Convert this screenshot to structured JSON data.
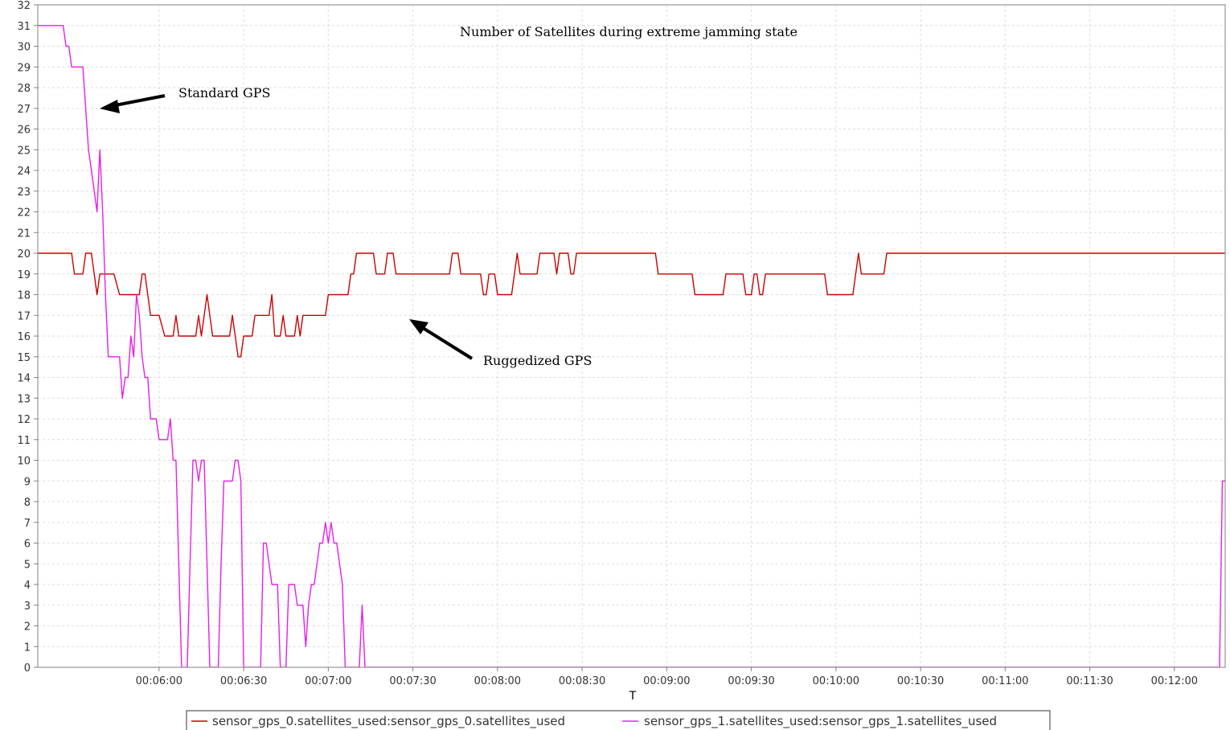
{
  "chart_data": {
    "type": "line",
    "title": "Number of Satellites during extreme jamming state",
    "xlabel": "T",
    "ylabel": "",
    "xlim": [
      "00:05:17",
      "00:12:18"
    ],
    "ylim": [
      0,
      32
    ],
    "grid": true,
    "legend": "bottom-center",
    "x_ticks": [
      "00:06:00",
      "00:06:30",
      "00:07:00",
      "00:07:30",
      "00:08:00",
      "00:08:30",
      "00:09:00",
      "00:09:30",
      "00:10:00",
      "00:10:30",
      "00:11:00",
      "00:11:30",
      "00:12:00"
    ],
    "y_ticks": [
      0,
      1,
      2,
      3,
      4,
      5,
      6,
      7,
      8,
      9,
      10,
      11,
      12,
      13,
      14,
      15,
      16,
      17,
      18,
      19,
      20,
      21,
      22,
      23,
      24,
      25,
      26,
      27,
      28,
      29,
      30,
      31,
      32
    ],
    "annotations": [
      {
        "text": "Standard GPS",
        "points_to": [
          "00:05:46",
          27.5
        ]
      },
      {
        "text": "Ruggedized GPS",
        "points_to": [
          "00:07:37",
          17.2
        ]
      }
    ],
    "series": [
      {
        "name": "sensor_gps_0.satellites_used:sensor_gps_0.satellites_used",
        "color": "#cc0000",
        "points": [
          [
            "00:05:17",
            20
          ],
          [
            "00:05:29",
            20
          ],
          [
            "00:05:30",
            19
          ],
          [
            "00:05:33",
            19
          ],
          [
            "00:05:34",
            20
          ],
          [
            "00:05:36",
            20
          ],
          [
            "00:05:38",
            18
          ],
          [
            "00:05:39",
            19
          ],
          [
            "00:05:44",
            19
          ],
          [
            "00:05:46",
            18
          ],
          [
            "00:05:53",
            18
          ],
          [
            "00:05:54",
            19
          ],
          [
            "00:05:55",
            19
          ],
          [
            "00:05:57",
            17
          ],
          [
            "00:06:00",
            17
          ],
          [
            "00:06:02",
            16
          ],
          [
            "00:06:05",
            16
          ],
          [
            "00:06:06",
            17
          ],
          [
            "00:06:07",
            16
          ],
          [
            "00:06:13",
            16
          ],
          [
            "00:06:14",
            17
          ],
          [
            "00:06:15",
            16
          ],
          [
            "00:06:16",
            17
          ],
          [
            "00:06:17",
            18
          ],
          [
            "00:06:18",
            17
          ],
          [
            "00:06:19",
            16
          ],
          [
            "00:06:25",
            16
          ],
          [
            "00:06:26",
            17
          ],
          [
            "00:06:27",
            16
          ],
          [
            "00:06:28",
            15
          ],
          [
            "00:06:29",
            15
          ],
          [
            "00:06:30",
            16
          ],
          [
            "00:06:33",
            16
          ],
          [
            "00:06:34",
            17
          ],
          [
            "00:06:39",
            17
          ],
          [
            "00:06:40",
            18
          ],
          [
            "00:06:41",
            16
          ],
          [
            "00:06:43",
            16
          ],
          [
            "00:06:44",
            17
          ],
          [
            "00:06:45",
            16
          ],
          [
            "00:06:48",
            16
          ],
          [
            "00:06:49",
            17
          ],
          [
            "00:06:50",
            16
          ],
          [
            "00:06:51",
            17
          ],
          [
            "00:06:59",
            17
          ],
          [
            "00:07:00",
            18
          ],
          [
            "00:07:07",
            18
          ],
          [
            "00:07:08",
            19
          ],
          [
            "00:07:09",
            19
          ],
          [
            "00:07:10",
            20
          ],
          [
            "00:07:16",
            20
          ],
          [
            "00:07:17",
            19
          ],
          [
            "00:07:20",
            19
          ],
          [
            "00:07:21",
            20
          ],
          [
            "00:07:23",
            20
          ],
          [
            "00:07:24",
            19
          ],
          [
            "00:07:43",
            19
          ],
          [
            "00:07:44",
            20
          ],
          [
            "00:07:46",
            20
          ],
          [
            "00:07:47",
            19
          ],
          [
            "00:07:54",
            19
          ],
          [
            "00:07:55",
            18
          ],
          [
            "00:07:56",
            18
          ],
          [
            "00:07:57",
            19
          ],
          [
            "00:07:59",
            19
          ],
          [
            "00:08:00",
            18
          ],
          [
            "00:08:05",
            18
          ],
          [
            "00:08:06",
            19
          ],
          [
            "00:08:07",
            20
          ],
          [
            "00:08:08",
            19
          ],
          [
            "00:08:14",
            19
          ],
          [
            "00:08:15",
            20
          ],
          [
            "00:08:20",
            20
          ],
          [
            "00:08:21",
            19
          ],
          [
            "00:08:22",
            20
          ],
          [
            "00:08:25",
            20
          ],
          [
            "00:08:26",
            19
          ],
          [
            "00:08:27",
            19
          ],
          [
            "00:08:28",
            20
          ],
          [
            "00:08:56",
            20
          ],
          [
            "00:08:57",
            19
          ],
          [
            "00:09:09",
            19
          ],
          [
            "00:09:10",
            18
          ],
          [
            "00:09:20",
            18
          ],
          [
            "00:09:21",
            19
          ],
          [
            "00:09:27",
            19
          ],
          [
            "00:09:28",
            18
          ],
          [
            "00:09:30",
            18
          ],
          [
            "00:09:31",
            19
          ],
          [
            "00:09:32",
            19
          ],
          [
            "00:09:33",
            18
          ],
          [
            "00:09:34",
            18
          ],
          [
            "00:09:35",
            19
          ],
          [
            "00:09:56",
            19
          ],
          [
            "00:09:57",
            18
          ],
          [
            "00:10:06",
            18
          ],
          [
            "00:10:07",
            19
          ],
          [
            "00:10:08",
            20
          ],
          [
            "00:10:09",
            19
          ],
          [
            "00:10:17",
            19
          ],
          [
            "00:10:18",
            20
          ],
          [
            "00:12:18",
            20
          ]
        ]
      },
      {
        "name": "sensor_gps_1.satellites_used:sensor_gps_1.satellites_used",
        "color": "#e81ee8",
        "points": [
          [
            "00:05:17",
            31
          ],
          [
            "00:05:26",
            31
          ],
          [
            "00:05:27",
            30
          ],
          [
            "00:05:28",
            30
          ],
          [
            "00:05:29",
            29
          ],
          [
            "00:05:33",
            29
          ],
          [
            "00:05:34",
            27
          ],
          [
            "00:05:35",
            25
          ],
          [
            "00:05:36",
            24
          ],
          [
            "00:05:38",
            22
          ],
          [
            "00:05:39",
            25
          ],
          [
            "00:05:40",
            22
          ],
          [
            "00:05:41",
            18
          ],
          [
            "00:05:42",
            15
          ],
          [
            "00:05:46",
            15
          ],
          [
            "00:05:47",
            13
          ],
          [
            "00:05:48",
            14
          ],
          [
            "00:05:49",
            14
          ],
          [
            "00:05:50",
            16
          ],
          [
            "00:05:51",
            15
          ],
          [
            "00:05:52",
            18
          ],
          [
            "00:05:53",
            17
          ],
          [
            "00:05:54",
            15
          ],
          [
            "00:05:55",
            14
          ],
          [
            "00:05:56",
            14
          ],
          [
            "00:05:57",
            12
          ],
          [
            "00:05:59",
            12
          ],
          [
            "00:06:00",
            11
          ],
          [
            "00:06:03",
            11
          ],
          [
            "00:06:04",
            12
          ],
          [
            "00:06:05",
            10
          ],
          [
            "00:06:06",
            10
          ],
          [
            "00:06:07",
            5
          ],
          [
            "00:06:08",
            0
          ],
          [
            "00:06:10",
            0
          ],
          [
            "00:06:11",
            5
          ],
          [
            "00:06:12",
            10
          ],
          [
            "00:06:13",
            10
          ],
          [
            "00:06:14",
            9
          ],
          [
            "00:06:15",
            10
          ],
          [
            "00:06:16",
            10
          ],
          [
            "00:06:17",
            5
          ],
          [
            "00:06:18",
            0
          ],
          [
            "00:06:21",
            0
          ],
          [
            "00:06:22",
            5
          ],
          [
            "00:06:23",
            9
          ],
          [
            "00:06:26",
            9
          ],
          [
            "00:06:27",
            10
          ],
          [
            "00:06:28",
            10
          ],
          [
            "00:06:29",
            9
          ],
          [
            "00:06:30",
            0
          ],
          [
            "00:06:36",
            0
          ],
          [
            "00:06:37",
            6
          ],
          [
            "00:06:38",
            6
          ],
          [
            "00:06:39",
            5
          ],
          [
            "00:06:40",
            4
          ],
          [
            "00:06:42",
            4
          ],
          [
            "00:06:43",
            0
          ],
          [
            "00:06:45",
            0
          ],
          [
            "00:06:46",
            4
          ],
          [
            "00:06:48",
            4
          ],
          [
            "00:06:49",
            3
          ],
          [
            "00:06:51",
            3
          ],
          [
            "00:06:52",
            1
          ],
          [
            "00:06:53",
            3
          ],
          [
            "00:06:54",
            4
          ],
          [
            "00:06:55",
            4
          ],
          [
            "00:06:56",
            5
          ],
          [
            "00:06:57",
            6
          ],
          [
            "00:06:58",
            6
          ],
          [
            "00:06:59",
            7
          ],
          [
            "00:07:00",
            6
          ],
          [
            "00:07:01",
            7
          ],
          [
            "00:07:02",
            6
          ],
          [
            "00:07:03",
            6
          ],
          [
            "00:07:04",
            5
          ],
          [
            "00:07:05",
            4
          ],
          [
            "00:07:06",
            0
          ],
          [
            "00:07:11",
            0
          ],
          [
            "00:07:12",
            3
          ],
          [
            "00:07:13",
            0
          ],
          [
            "00:12:16",
            0
          ],
          [
            "00:12:17",
            9
          ],
          [
            "00:12:18",
            9
          ],
          [
            "00:12:19",
            10
          ],
          [
            "00:12:22",
            10
          ]
        ]
      }
    ]
  }
}
